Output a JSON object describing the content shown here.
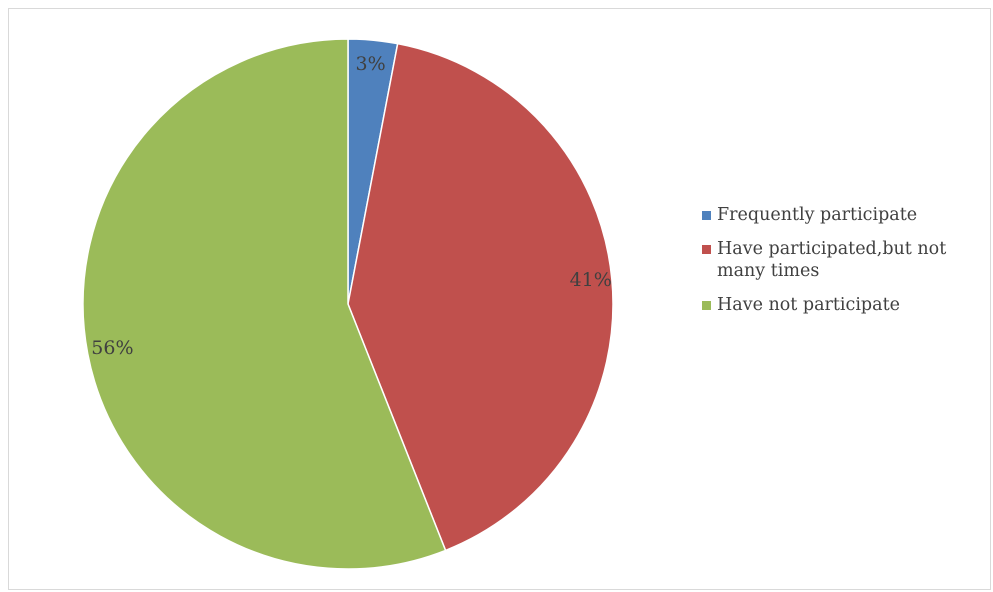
{
  "chart_data": {
    "type": "pie",
    "title": "",
    "legend_position": "right",
    "slices": [
      {
        "label": "Frequently participate",
        "value": 3,
        "display": "3%",
        "color": "#4f81bd"
      },
      {
        "label": "Have participated,but not many times",
        "value": 41,
        "display": "41%",
        "color": "#c0504d"
      },
      {
        "label": "Have not participate",
        "value": 56,
        "display": "56%",
        "color": "#9bbb59"
      }
    ]
  },
  "legend": {
    "items": [
      {
        "line1": "Frequently participate",
        "line2": ""
      },
      {
        "line1": "Have participated,but not",
        "line2": "many times"
      },
      {
        "line1": "Have not participate",
        "line2": ""
      }
    ]
  }
}
